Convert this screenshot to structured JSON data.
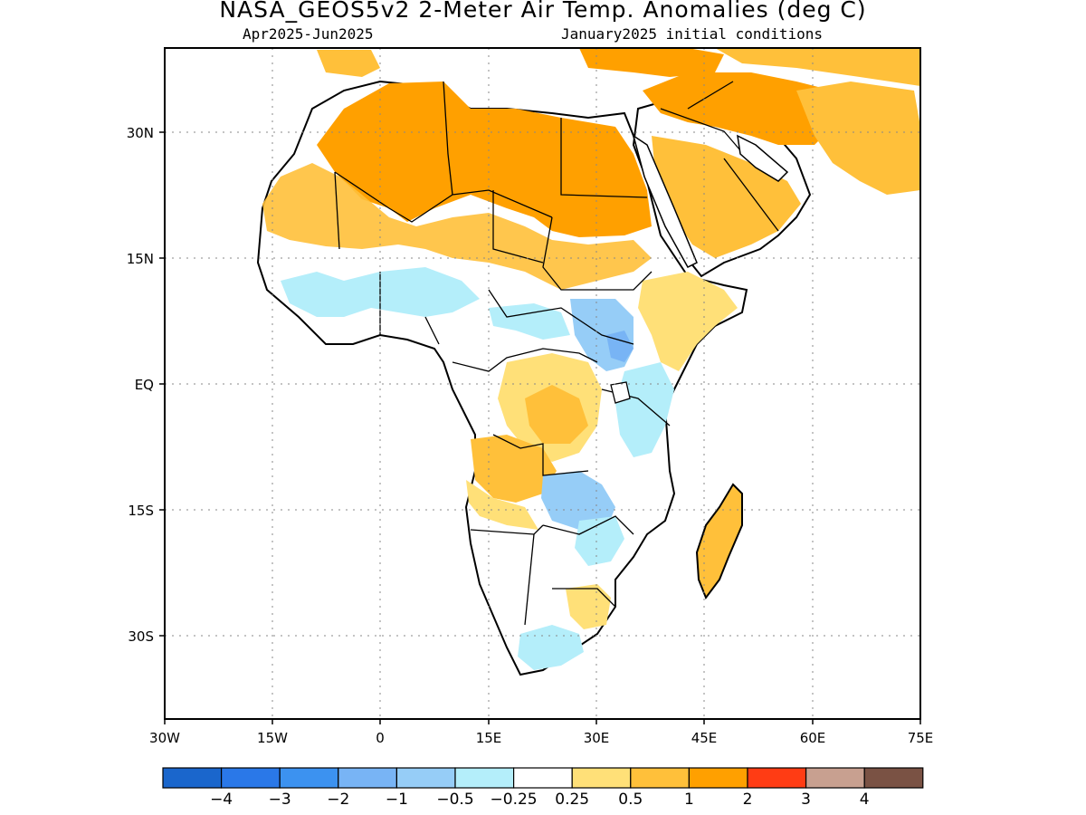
{
  "title": "NASA_GEOS5v2 2-Meter Air Temp. Anomalies (deg C)",
  "subtitle_left": "Apr2025-Jun2025",
  "subtitle_right": "January2025 initial conditions",
  "map": {
    "projection": "lat-lon",
    "lon_range": [
      -30,
      75
    ],
    "lat_range": [
      -40,
      40
    ],
    "grid": true,
    "x_ticks": [
      "30W",
      "15W",
      "0",
      "15E",
      "30E",
      "45E",
      "60E",
      "75E"
    ],
    "y_ticks": [
      "30N",
      "15N",
      "EQ",
      "15S",
      "30S"
    ],
    "regions": [
      {
        "name": "Sahara / North Africa",
        "anomaly": "1 to 2"
      },
      {
        "name": "Arabian Peninsula",
        "anomaly": "0.5 to 2"
      },
      {
        "name": "Sahel",
        "anomaly": "0.5 to 1"
      },
      {
        "name": "West Africa coast",
        "anomaly": "-0.5 to -0.25"
      },
      {
        "name": "South Sudan / Uganda",
        "anomaly": "-1 to -0.5"
      },
      {
        "name": "Congo Basin",
        "anomaly": "0.25 to 1"
      },
      {
        "name": "Angola",
        "anomaly": "0.5 to 1"
      },
      {
        "name": "Zambia / Zimbabwe",
        "anomaly": "-1 to -0.25"
      },
      {
        "name": "Madagascar",
        "anomaly": "0.5 to 1"
      },
      {
        "name": "South Africa coast",
        "anomaly": "-0.5 to -0.25"
      }
    ]
  },
  "colorbar": {
    "colors": [
      "#1a66cc",
      "#2a78e8",
      "#3c92f0",
      "#78b4f5",
      "#96cdf7",
      "#b4eefa",
      "#ffffff",
      "#ffe078",
      "#ffc03a",
      "#ffa000",
      "#ff3c14",
      "#c8a090",
      "#7a5244"
    ],
    "labels": [
      "-4",
      "-3",
      "-2",
      "-1",
      "-0.5",
      "-0.25",
      "0.25",
      "0.5",
      "1",
      "2",
      "3",
      "4"
    ]
  }
}
